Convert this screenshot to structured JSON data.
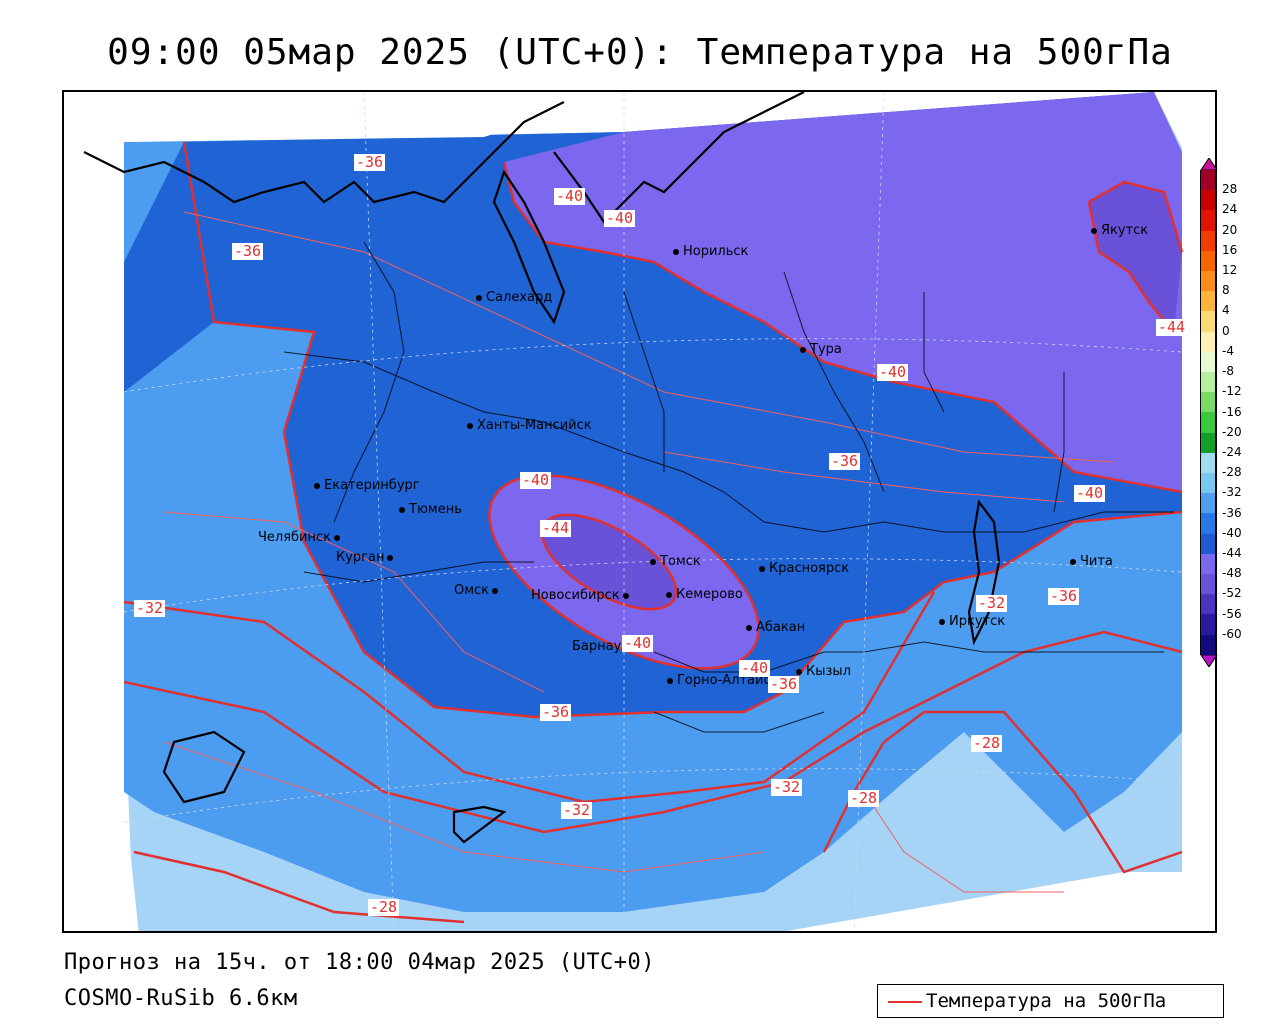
{
  "title": "09:00 05мар 2025 (UTC+0): Температура на 500гПа",
  "footer": {
    "forecast": "Прогноз на 15ч. от 18:00 04мар 2025 (UTC+0)",
    "model": "COSMO-RuSib 6.6км"
  },
  "legend": {
    "label": "Температура на 500гПа",
    "line_color": "#e03030"
  },
  "colorbar": {
    "ticks": [
      "28",
      "24",
      "20",
      "16",
      "12",
      "8",
      "4",
      "0",
      "-4",
      "-8",
      "-12",
      "-16",
      "-20",
      "-24",
      "-28",
      "-32",
      "-36",
      "-40",
      "-44",
      "-48",
      "-52",
      "-56",
      "-60"
    ],
    "colors": [
      "#a00028",
      "#c80000",
      "#e01400",
      "#f03c00",
      "#f86400",
      "#fc8c1e",
      "#fcb43c",
      "#fcd878",
      "#fcf0b4",
      "#e6fad2",
      "#b4f0a0",
      "#78dc64",
      "#3cc83c",
      "#14a028",
      "#a0dcf0",
      "#78c8f0",
      "#50a0f0",
      "#2878e6",
      "#1e5ad2",
      "#7b68ee",
      "#6a52d8",
      "#4a34c0",
      "#2a1aa0",
      "#140a80"
    ]
  },
  "cities": [
    {
      "name": "Норильск"
    },
    {
      "name": "Салехард"
    },
    {
      "name": "Тура"
    },
    {
      "name": "Якутск"
    },
    {
      "name": "Ханты-Мансийск"
    },
    {
      "name": "Екатеринбург"
    },
    {
      "name": "Тюмень"
    },
    {
      "name": "Челябинск"
    },
    {
      "name": "Курган"
    },
    {
      "name": "Омск"
    },
    {
      "name": "Новосибирск"
    },
    {
      "name": "Томск"
    },
    {
      "name": "Кемерово"
    },
    {
      "name": "Красноярск"
    },
    {
      "name": "Барнаул"
    },
    {
      "name": "Абакан"
    },
    {
      "name": "Горно-Алтайск"
    },
    {
      "name": "Кызыл"
    },
    {
      "name": "Иркутск"
    },
    {
      "name": "Чита"
    }
  ],
  "isotherm_labels": [
    "-36",
    "-36",
    "-40",
    "-40",
    "-44",
    "-40",
    "-40",
    "-36",
    "-40",
    "-44",
    "-40",
    "-32",
    "-36",
    "-40",
    "-36",
    "-32",
    "-36",
    "-32",
    "-28",
    "-32",
    "-28",
    "-28"
  ]
}
